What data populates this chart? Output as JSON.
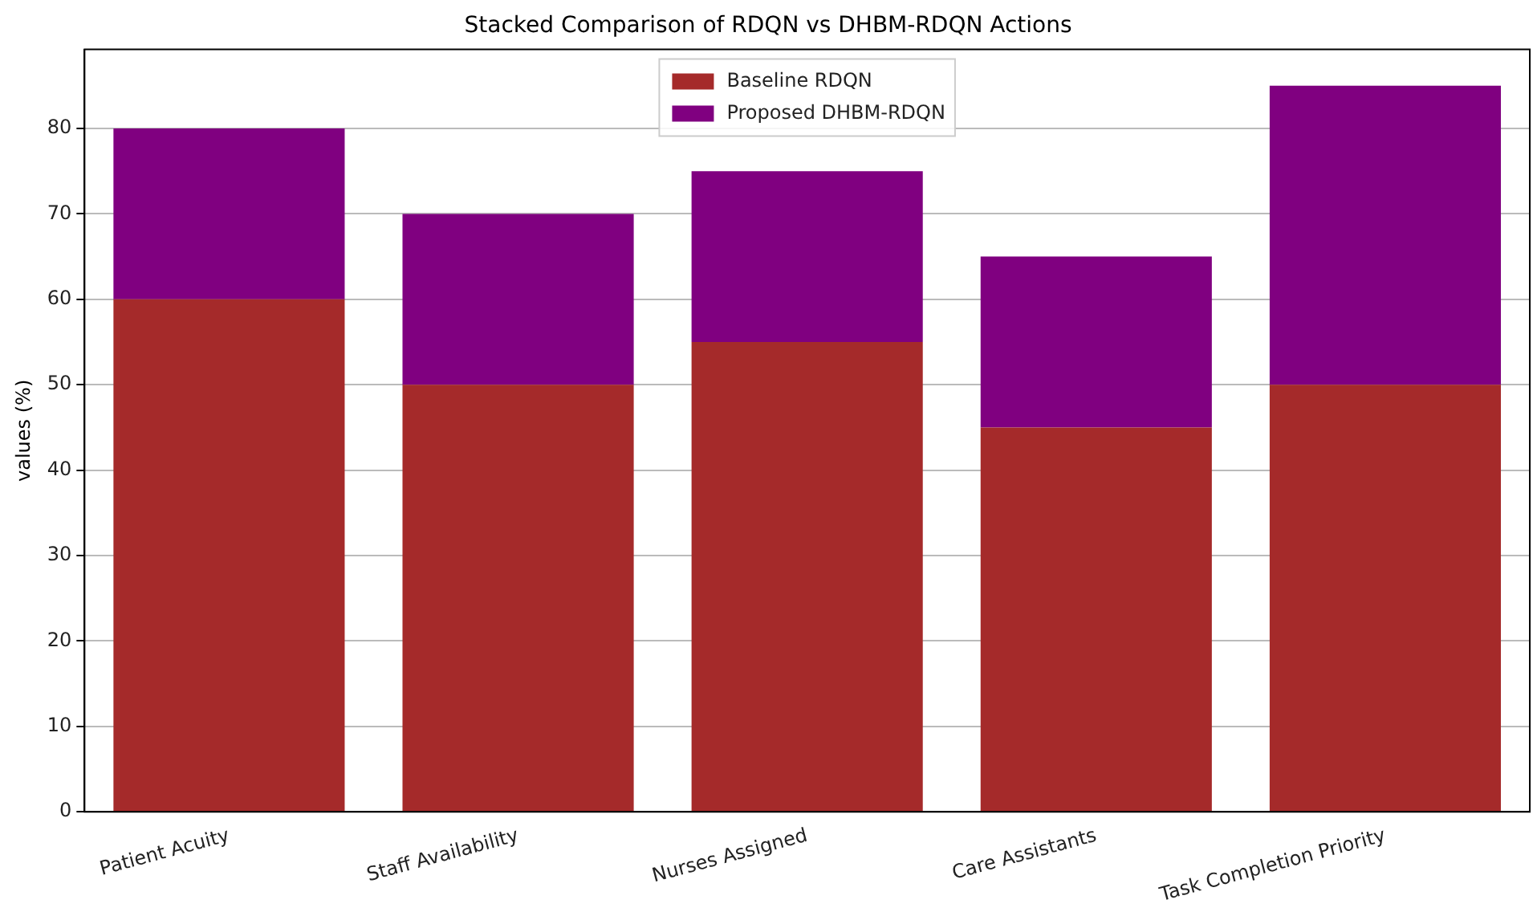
{
  "chart_data": {
    "type": "bar",
    "title": "Stacked Comparison of RDQN vs DHBM-RDQN Actions",
    "ylabel": "values (%)",
    "categories": [
      "Patient Acuity",
      "Staff Availability",
      "Nurses Assigned",
      "Care Assistants",
      "Task Completion Priority"
    ],
    "stacked": true,
    "series": [
      {
        "name": "Baseline RDQN",
        "color": "#a52a2a",
        "values": [
          60,
          50,
          55,
          45,
          50
        ]
      },
      {
        "name": "Proposed DHBM-RDQN",
        "color": "#800080",
        "values": [
          20,
          20,
          20,
          20,
          35
        ]
      }
    ],
    "ylim": [
      0,
      89.25
    ],
    "yticks": [
      0,
      10,
      20,
      30,
      40,
      50,
      60,
      70,
      80
    ],
    "grid": "y",
    "legend": "top center"
  }
}
